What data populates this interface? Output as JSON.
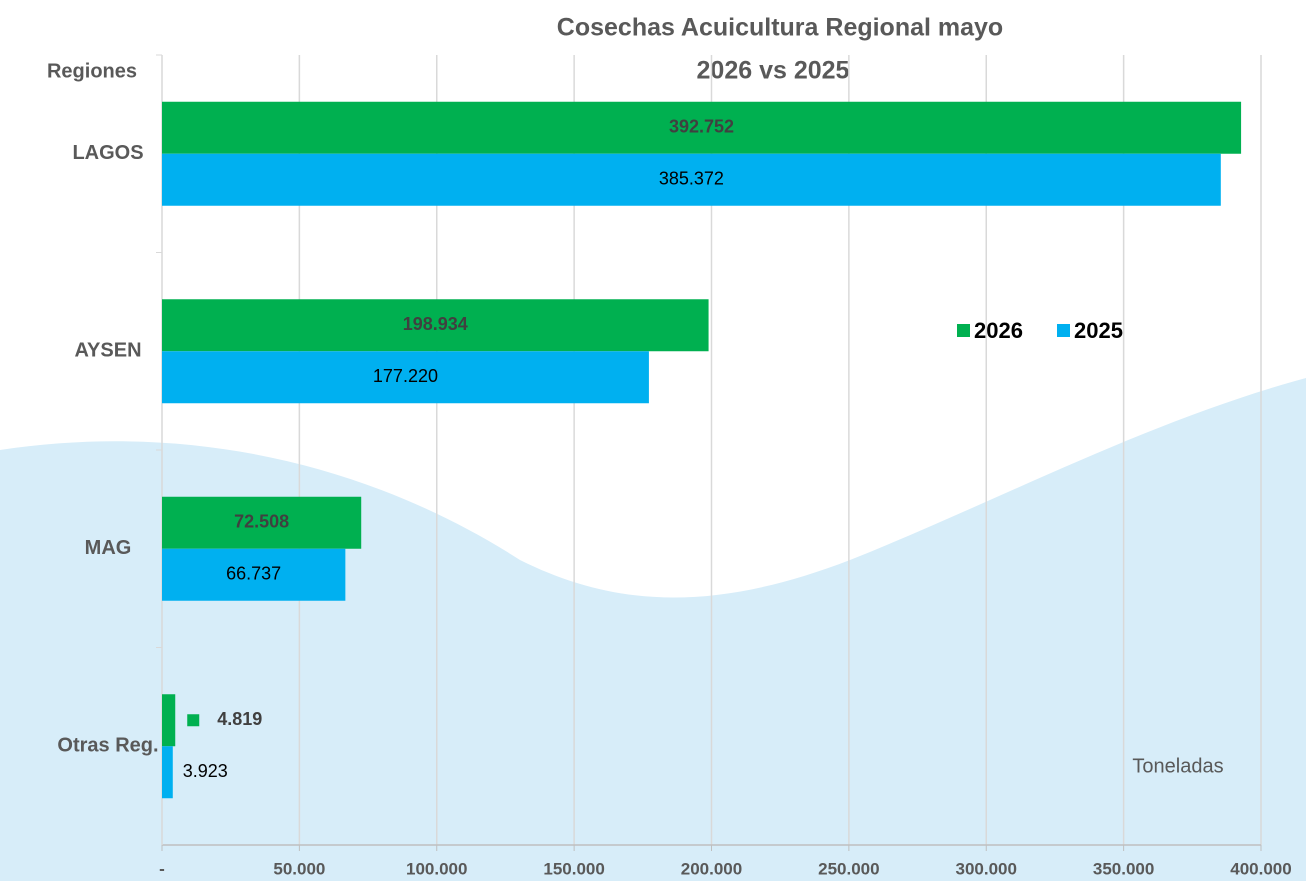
{
  "chart_data": {
    "type": "hbar",
    "title": [
      "Cosechas Acuicultura Regional mayo",
      "2026 vs 2025"
    ],
    "y_label": "Regiones",
    "annotation": "Toneladas",
    "categories": [
      "LAGOS",
      "AYSEN",
      "MAG",
      "Otras Reg."
    ],
    "series": [
      {
        "name": "2026",
        "color": "#00b050",
        "values": [
          392752,
          198934,
          72508,
          4819
        ],
        "value_labels": [
          "392.752",
          "198.934",
          "72.508",
          "4.819"
        ]
      },
      {
        "name": "2025",
        "color": "#00b0f0",
        "values": [
          385372,
          177220,
          66737,
          3923
        ],
        "value_labels": [
          "385.372",
          "177.220",
          "66.737",
          "3.923"
        ]
      }
    ],
    "xlim": [
      0,
      400000
    ],
    "xticks": [
      {
        "value": 0,
        "label": "-"
      },
      {
        "value": 50000,
        "label": "50.000"
      },
      {
        "value": 100000,
        "label": "100.000"
      },
      {
        "value": 150000,
        "label": "150.000"
      },
      {
        "value": 200000,
        "label": "200.000"
      },
      {
        "value": 250000,
        "label": "250.000"
      },
      {
        "value": 300000,
        "label": "300.000"
      },
      {
        "value": 350000,
        "label": "350.000"
      },
      {
        "value": 400000,
        "label": "400.000"
      }
    ],
    "grid": true
  }
}
